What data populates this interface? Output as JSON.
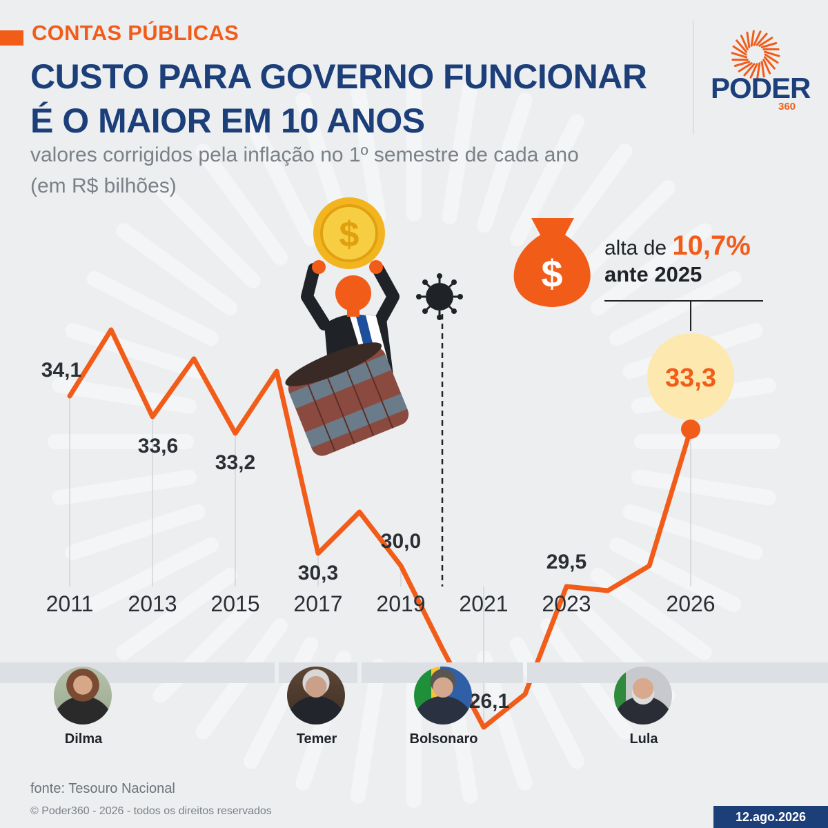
{
  "header": {
    "kicker": "CONTAS PÚBLICAS",
    "title_line1": "CUSTO PARA GOVERNO FUNCIONAR",
    "title_line2": "É O MAIOR EM 10 ANOS",
    "subtitle_line1": "valores corrigidos pela inflação no 1º semestre de cada ano",
    "subtitle_line2": "(em R$ bilhões)"
  },
  "logo": {
    "word": "PODER",
    "number": "360"
  },
  "callout": {
    "prefix": "alta de ",
    "percent": "10,7%",
    "line2": "ante 2025"
  },
  "chart_data": {
    "type": "line",
    "x": [
      2011,
      2012,
      2013,
      2014,
      2015,
      2016,
      2017,
      2018,
      2019,
      2020,
      2021,
      2022,
      2023,
      2024,
      2025,
      2026
    ],
    "values": [
      34.1,
      35.7,
      33.6,
      35.0,
      33.2,
      34.7,
      30.3,
      31.3,
      30.0,
      28.0,
      26.1,
      26.9,
      29.5,
      29.4,
      30.0,
      33.3
    ],
    "tick_labels": [
      "2011",
      "2013",
      "2015",
      "2017",
      "2019",
      "2021",
      "2023",
      "2026"
    ],
    "tick_years": [
      2011,
      2013,
      2015,
      2017,
      2019,
      2021,
      2023,
      2026
    ],
    "data_labels": [
      {
        "year": 2011,
        "text": "34,1"
      },
      {
        "year": 2013,
        "text": "33,6"
      },
      {
        "year": 2015,
        "text": "33,2"
      },
      {
        "year": 2017,
        "text": "30,3"
      },
      {
        "year": 2019,
        "text": "30,0"
      },
      {
        "year": 2021,
        "text": "26,1"
      },
      {
        "year": 2023,
        "text": "29,5"
      },
      {
        "year": 2026,
        "text": "33,3",
        "highlight": true
      }
    ],
    "pandemic_marker_year": 2020,
    "line_color": "#f25c19",
    "highlight_circle_color": "#fde8b0"
  },
  "governments": [
    {
      "name": "Dilma"
    },
    {
      "name": "Temer"
    },
    {
      "name": "Bolsonaro"
    },
    {
      "name": "Lula"
    }
  ],
  "footer": {
    "source": "fonte: Tesouro Nacional",
    "copyright": "© Poder360 - 2026 - todos os direitos reservados",
    "date": "12.ago.2026"
  },
  "colors": {
    "brand_blue": "#1c3f7a",
    "accent_orange": "#f25c19",
    "background": "#eceef0"
  }
}
